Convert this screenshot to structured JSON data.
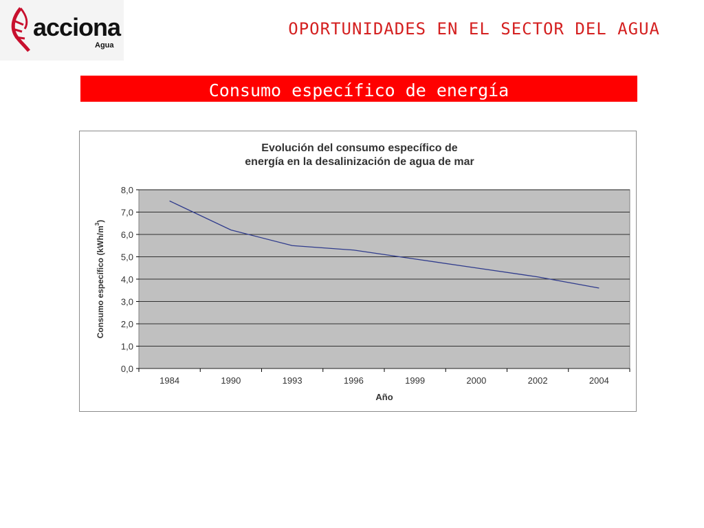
{
  "logo": {
    "brand": "acciona",
    "division": "Agua"
  },
  "header": {
    "title": "OPORTUNIDADES EN EL SECTOR DEL AGUA"
  },
  "banner": {
    "title": "Consumo específico de energía"
  },
  "colors": {
    "accent": "#ff0000",
    "header_text": "#d42020",
    "plot_bg": "#c0c0c0",
    "line": "#2e3a8c"
  },
  "chart_data": {
    "type": "line",
    "title_lines": [
      "Evolución del consumo específico de",
      "energía en la desalinización de agua de mar"
    ],
    "xlabel": "Año",
    "ylabel": "Consumo específico (kWh/m",
    "ylabel_sup": "3",
    "ylabel_close": ")",
    "categories": [
      "1984",
      "1990",
      "1993",
      "1996",
      "1999",
      "2000",
      "2002",
      "2004"
    ],
    "values": [
      7.5,
      6.2,
      5.5,
      5.3,
      4.9,
      4.5,
      4.1,
      3.6
    ],
    "ylim": [
      0,
      8
    ],
    "yticks": [
      "0,0",
      "1,0",
      "2,0",
      "3,0",
      "4,0",
      "5,0",
      "6,0",
      "7,0",
      "8,0"
    ],
    "grid": true,
    "legend": "none"
  }
}
